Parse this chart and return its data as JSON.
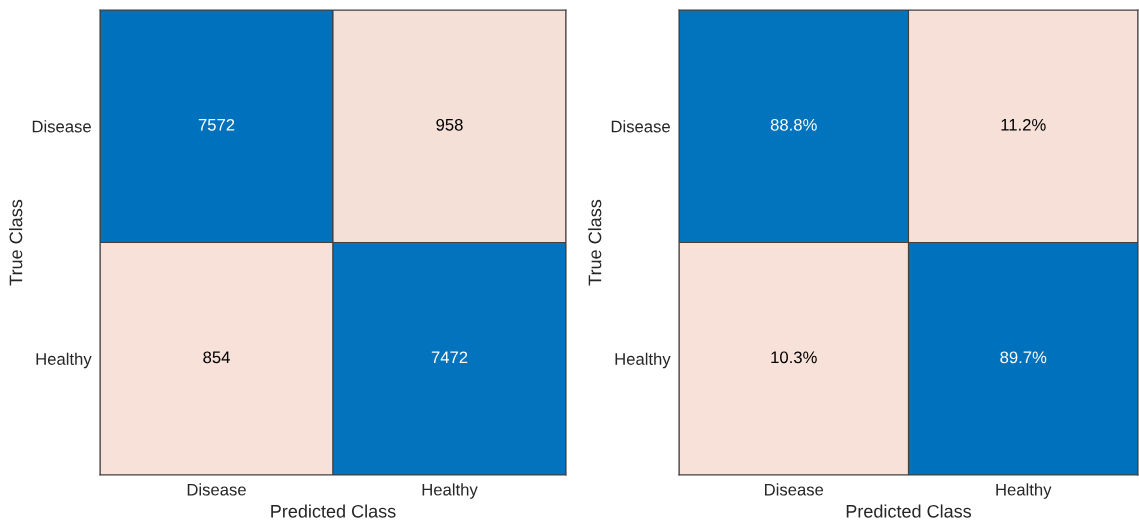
{
  "chart_data": [
    {
      "type": "heatmap",
      "xlabel": "Predicted Class",
      "ylabel": "True Class",
      "categories": [
        "Disease",
        "Healthy"
      ],
      "y_categories": [
        "Disease",
        "Healthy"
      ],
      "colors": [
        "#f8e1d8",
        "#0072bd"
      ],
      "cells": [
        [
          7572,
          958
        ],
        [
          854,
          7472
        ]
      ],
      "data_labels": true
    },
    {
      "type": "heatmap",
      "xlabel": "Predicted Class",
      "ylabel": "True Class",
      "categories": [
        "Disease",
        "Healthy"
      ],
      "y_categories": [
        "Disease",
        "Healthy"
      ],
      "colors": [
        "#f8e1d8",
        "#0072bd"
      ],
      "cells": [
        [
          88.8,
          11.2
        ],
        [
          10.3,
          89.7
        ]
      ],
      "cell_labels": [
        [
          "88.8%",
          "11.2%"
        ],
        [
          "10.3%",
          "89.7%"
        ]
      ]
    }
  ]
}
